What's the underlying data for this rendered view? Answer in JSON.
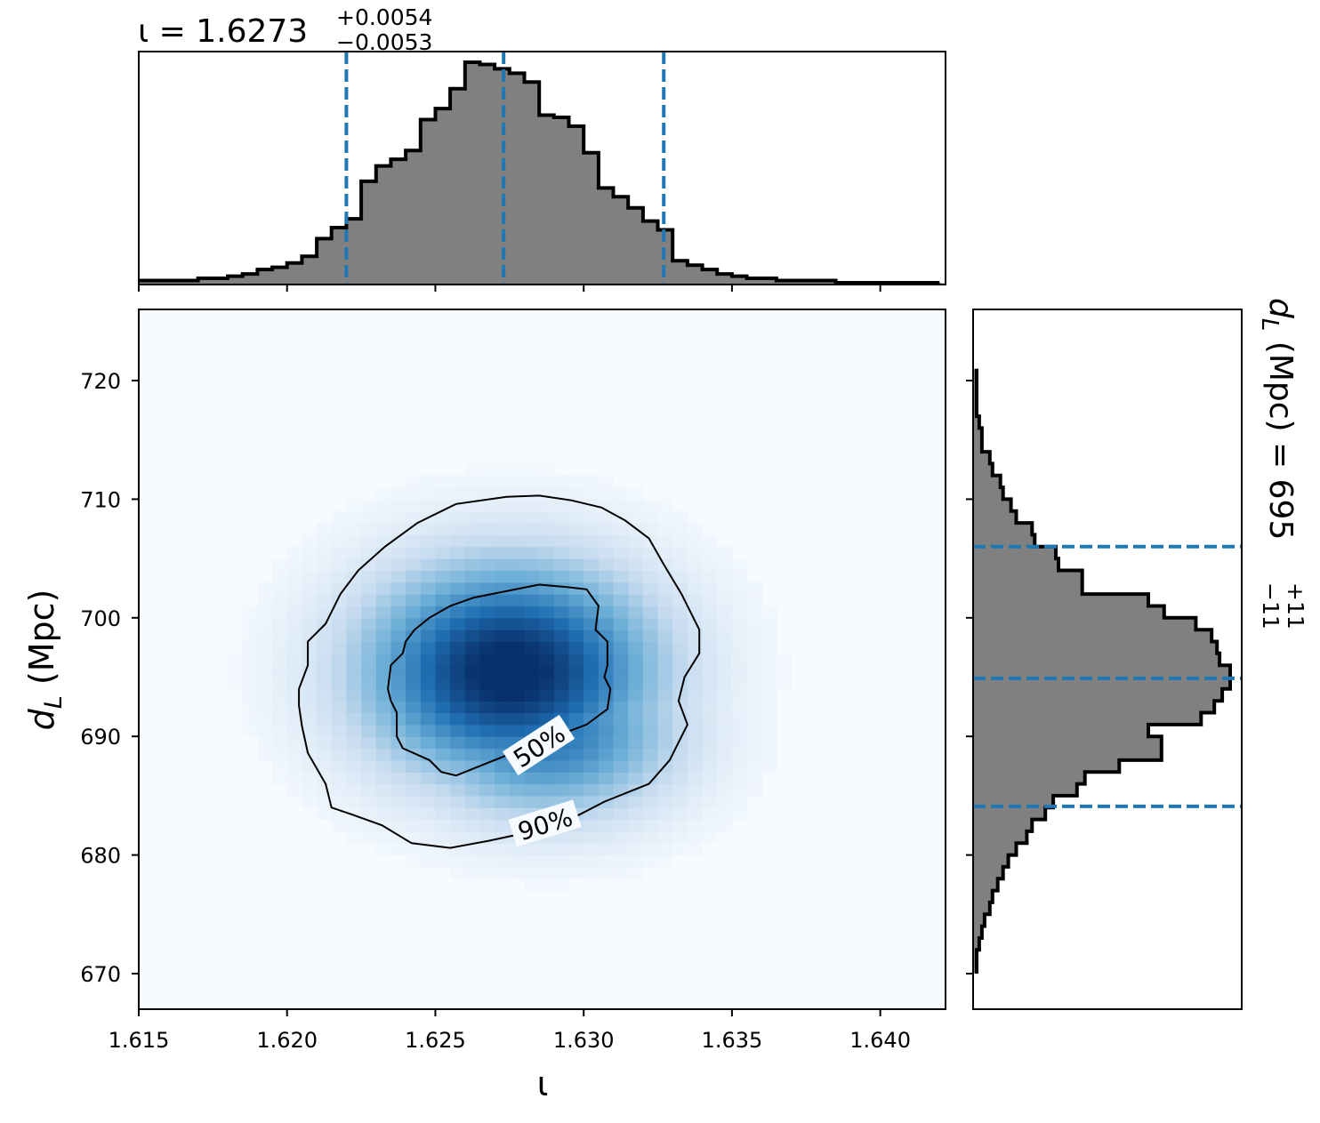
{
  "chart_data": {
    "type": "heatmap",
    "panels": [
      "joint-posterior-density",
      "iota-marginal-histogram",
      "dL-marginal-histogram"
    ],
    "x_label": "ι",
    "y_label": "d_L (Mpc)",
    "x_range": [
      1.615,
      1.6422
    ],
    "y_range": [
      667,
      726
    ],
    "x_ticks": [
      1.615,
      1.62,
      1.625,
      1.63,
      1.635,
      1.64
    ],
    "x_tick_labels": [
      "1.615",
      "1.620",
      "1.625",
      "1.630",
      "1.635",
      "1.640"
    ],
    "y_ticks": [
      670,
      680,
      690,
      700,
      710,
      720
    ],
    "y_tick_labels": [
      "670",
      "680",
      "690",
      "700",
      "710",
      "720"
    ],
    "colormap": "Blues",
    "grid": false,
    "iota_summary": {
      "param": "ι",
      "median": 1.6273,
      "median_text": "1.6273",
      "plus": "+0.0054",
      "minus": "−0.0053",
      "quantile_lines": [
        1.622,
        1.6273,
        1.6327
      ]
    },
    "dL_summary": {
      "param": "d_L (Mpc)",
      "median": 695,
      "median_text": "695",
      "plus": "+11",
      "minus": "−11",
      "quantile_lines": [
        684.1,
        694.9,
        706.0
      ]
    },
    "density": {
      "peak": {
        "x": 1.6275,
        "y": 695.5
      },
      "sigma_x": 0.0035,
      "sigma_y": 6.5
    },
    "contours": [
      {
        "label": "50%",
        "points": [
          [
            1.6234,
            694
          ],
          [
            1.6235,
            696
          ],
          [
            1.6239,
            697
          ],
          [
            1.624,
            698
          ],
          [
            1.6243,
            699
          ],
          [
            1.6248,
            700
          ],
          [
            1.6255,
            701
          ],
          [
            1.6263,
            701.7
          ],
          [
            1.6275,
            702.3
          ],
          [
            1.6285,
            702.8
          ],
          [
            1.6294,
            702.6
          ],
          [
            1.6301,
            702.4
          ],
          [
            1.6305,
            701
          ],
          [
            1.6304,
            699
          ],
          [
            1.6308,
            698
          ],
          [
            1.6308,
            696
          ],
          [
            1.6307,
            695
          ],
          [
            1.6309,
            694
          ],
          [
            1.6308,
            692.3
          ],
          [
            1.6301,
            691
          ],
          [
            1.6285,
            689.5
          ],
          [
            1.6275,
            688.5
          ],
          [
            1.626,
            687
          ],
          [
            1.6257,
            686.7
          ],
          [
            1.6252,
            687
          ],
          [
            1.6248,
            688
          ],
          [
            1.6239,
            689
          ],
          [
            1.6237,
            690
          ],
          [
            1.6237,
            692
          ],
          [
            1.6235,
            693
          ],
          [
            1.6234,
            694
          ]
        ]
      },
      {
        "label": "90%",
        "points": [
          [
            1.6218,
            702
          ],
          [
            1.6224,
            704
          ],
          [
            1.6233,
            706
          ],
          [
            1.6244,
            708
          ],
          [
            1.6257,
            709.6
          ],
          [
            1.6274,
            710.2
          ],
          [
            1.6285,
            710.3
          ],
          [
            1.6296,
            709.9
          ],
          [
            1.6306,
            709.3
          ],
          [
            1.6314,
            708.2
          ],
          [
            1.6322,
            706.7
          ],
          [
            1.6327,
            704.5
          ],
          [
            1.6333,
            702
          ],
          [
            1.6339,
            699
          ],
          [
            1.6339,
            697
          ],
          [
            1.6334,
            695
          ],
          [
            1.6332,
            693
          ],
          [
            1.6335,
            691
          ],
          [
            1.6329,
            688
          ],
          [
            1.6322,
            686
          ],
          [
            1.6307,
            684.5
          ],
          [
            1.6297,
            683.2
          ],
          [
            1.6283,
            682
          ],
          [
            1.6268,
            681.2
          ],
          [
            1.6255,
            680.6
          ],
          [
            1.6242,
            681
          ],
          [
            1.6232,
            682.5
          ],
          [
            1.6222,
            683.4
          ],
          [
            1.6215,
            684
          ],
          [
            1.6213,
            686
          ],
          [
            1.6207,
            688.6
          ],
          [
            1.6205,
            690.9
          ],
          [
            1.6204,
            692.6
          ],
          [
            1.6204,
            694
          ],
          [
            1.6207,
            696
          ],
          [
            1.6207,
            698
          ],
          [
            1.6213,
            699.5
          ],
          [
            1.6218,
            702
          ]
        ]
      }
    ],
    "iota_hist": {
      "bin_edges": [
        1.615,
        1.6155,
        1.616,
        1.6165,
        1.617,
        1.6175,
        1.618,
        1.6185,
        1.619,
        1.6195,
        1.62,
        1.6205,
        1.621,
        1.6215,
        1.622,
        1.6225,
        1.623,
        1.6235,
        1.624,
        1.6245,
        1.625,
        1.6255,
        1.626,
        1.6265,
        1.627,
        1.6275,
        1.628,
        1.6285,
        1.629,
        1.6295,
        1.63,
        1.6305,
        1.631,
        1.6315,
        1.632,
        1.6325,
        1.633,
        1.6335,
        1.634,
        1.6345,
        1.635,
        1.6355,
        1.636,
        1.6365,
        1.637,
        1.6375,
        1.638,
        1.6385,
        1.639,
        1.6395,
        1.64,
        1.6405,
        1.641,
        1.6415,
        1.642
      ],
      "counts": [
        1,
        1,
        1,
        1,
        2,
        2,
        3,
        4,
        6,
        7,
        9,
        12,
        20,
        25,
        29,
        46,
        53,
        56,
        60,
        74,
        79,
        88,
        100,
        99,
        97,
        95,
        91,
        76,
        75,
        71,
        59,
        43,
        39,
        34,
        28,
        24,
        10,
        8,
        6,
        4,
        3,
        2,
        2,
        1,
        1,
        1,
        1,
        0,
        0,
        0,
        0,
        0,
        0,
        0
      ]
    },
    "dL_hist": {
      "bin_edges": [
        670,
        671,
        672,
        673,
        674,
        675,
        676,
        677,
        678,
        679,
        680,
        681,
        682,
        683,
        684,
        685,
        686,
        687,
        688,
        689,
        690,
        691,
        692,
        693,
        694,
        695,
        696,
        697,
        698,
        699,
        700,
        701,
        702,
        703,
        704,
        705,
        706,
        707,
        708,
        709,
        710,
        711,
        712,
        713,
        714,
        715,
        716,
        717,
        718,
        719,
        720,
        721
      ],
      "counts": [
        1,
        1,
        2,
        3,
        4,
        6,
        7,
        9,
        11,
        13,
        16,
        20,
        22,
        27,
        30,
        39,
        42,
        55,
        71,
        71,
        66,
        86,
        91,
        94,
        97,
        97,
        93,
        92,
        90,
        84,
        72,
        66,
        41,
        41,
        32,
        31,
        23,
        22,
        16,
        14,
        11,
        10,
        7,
        6,
        3,
        3,
        2,
        1,
        1,
        1,
        1
      ]
    }
  }
}
